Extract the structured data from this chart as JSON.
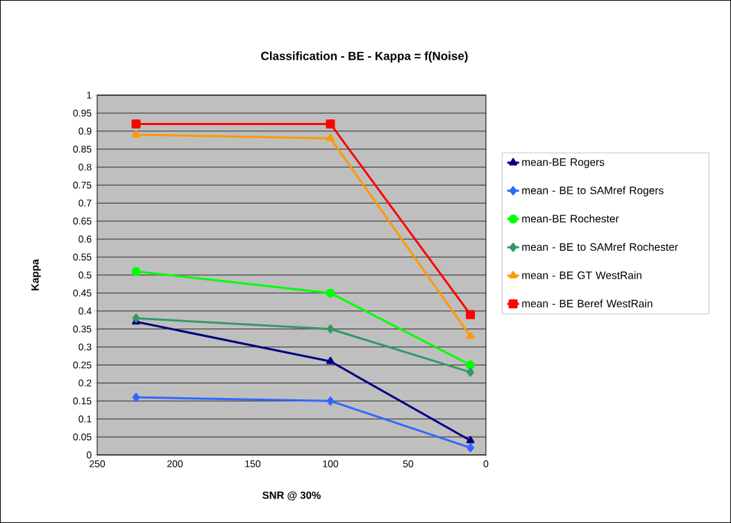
{
  "chart_data": {
    "type": "line",
    "title": "Classification - BE - Kappa = f(Noise)",
    "xlabel": "SNR @ 30%",
    "ylabel": "Kappa",
    "x": [
      225,
      100,
      10
    ],
    "xlim": [
      250,
      0
    ],
    "xticks": [
      250,
      200,
      150,
      100,
      50,
      0
    ],
    "ylim": [
      0,
      1
    ],
    "yticks": [
      0,
      0.05,
      0.1,
      0.15,
      0.2,
      0.25,
      0.3,
      0.35,
      0.4,
      0.45,
      0.5,
      0.55,
      0.6,
      0.65,
      0.7,
      0.75,
      0.8,
      0.85,
      0.9,
      0.95,
      1
    ],
    "grid": "y",
    "legend": "right",
    "line_style": "solid",
    "series": [
      {
        "name": "mean-BE Rogers",
        "color": "#000080",
        "marker": "triangle",
        "values": [
          0.37,
          0.26,
          0.04
        ]
      },
      {
        "name": "mean - BE to SAMref Rogers",
        "color": "#3366ff",
        "marker": "diamond",
        "values": [
          0.16,
          0.15,
          0.02
        ]
      },
      {
        "name": "mean-BE Rochester",
        "color": "#00ff00",
        "marker": "circle",
        "values": [
          0.51,
          0.45,
          0.25
        ]
      },
      {
        "name": "mean - BE to SAMref Rochester",
        "color": "#339966",
        "marker": "diamond",
        "values": [
          0.38,
          0.35,
          0.23
        ]
      },
      {
        "name": "mean - BE GT WestRain",
        "color": "#ff9900",
        "marker": "triangle",
        "values": [
          0.89,
          0.88,
          0.33
        ]
      },
      {
        "name": "mean - BE Beref WestRain",
        "color": "#ff0000",
        "marker": "square",
        "values": [
          0.92,
          0.92,
          0.39
        ]
      }
    ]
  }
}
